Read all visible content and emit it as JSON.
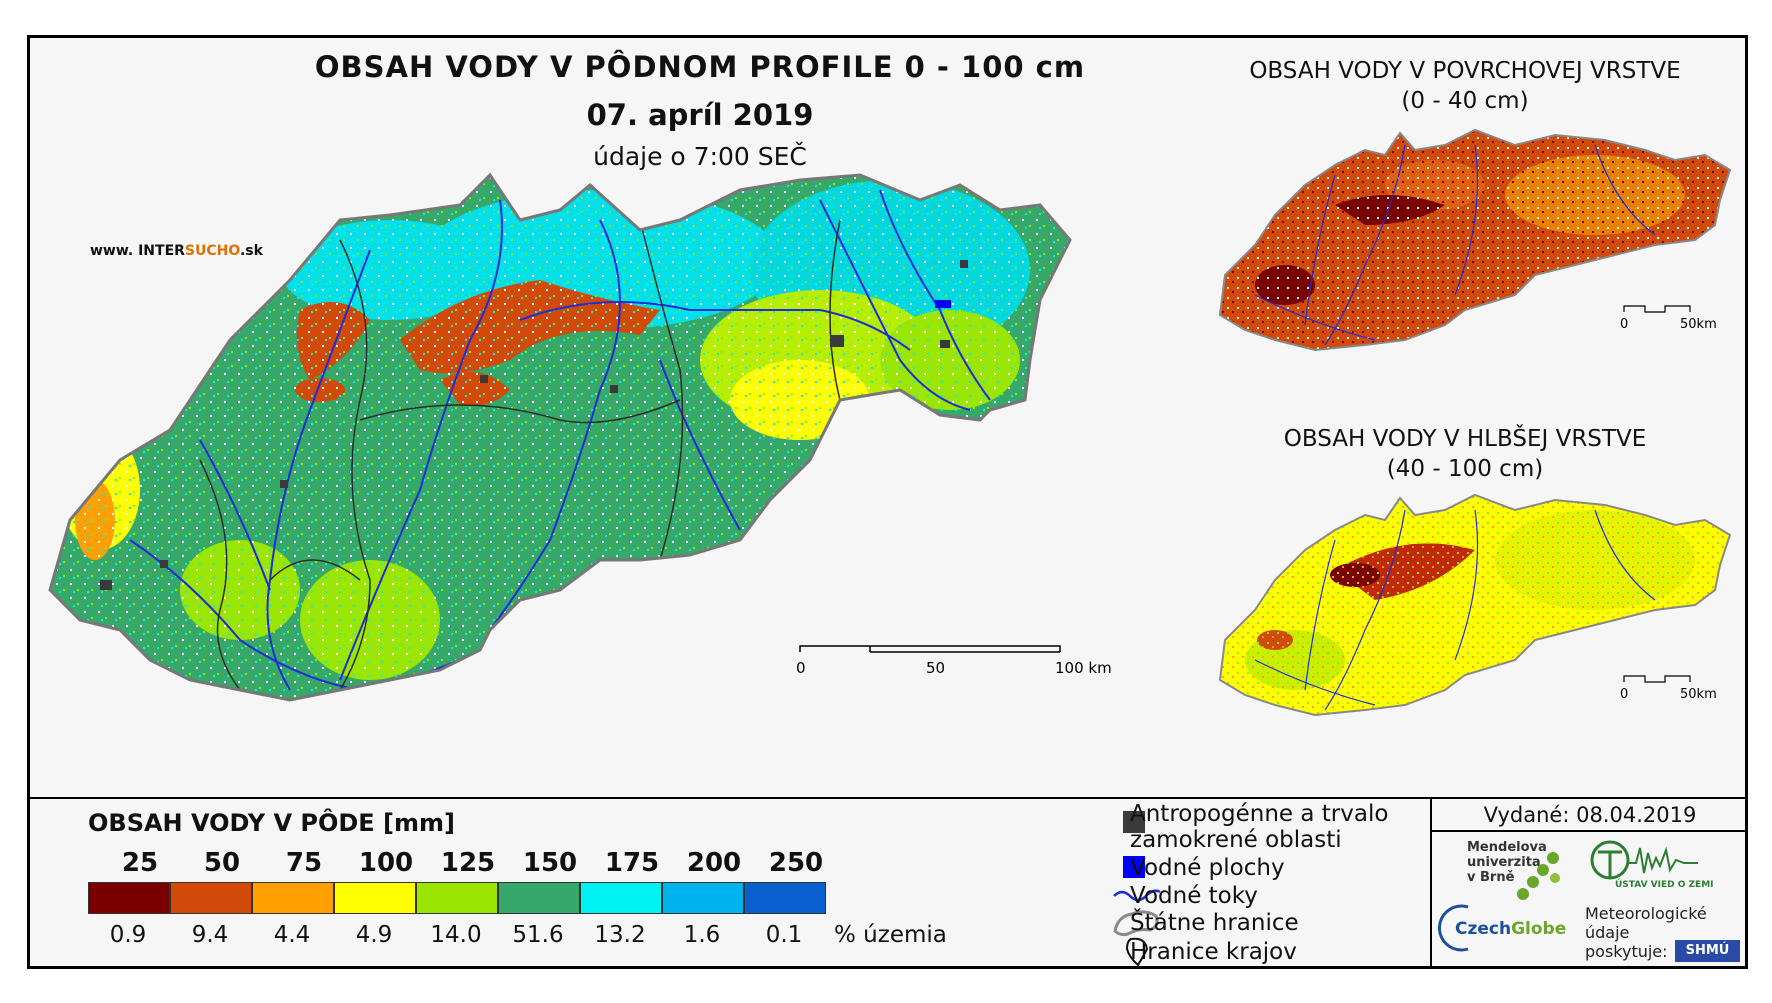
{
  "main_title": "OBSAH VODY V PÔDNOM PROFILE 0 - 100 cm",
  "date": "07. apríl 2019",
  "time_note": "údaje o 7:00 SEČ",
  "website": {
    "prefix": "www. INTER",
    "accent": "SUCHO",
    "suffix": ".sk"
  },
  "surface": {
    "title_line1": "OBSAH VODY V POVRCHOVEJ VRSTVE",
    "title_line2": "(0 - 40 cm)"
  },
  "deep": {
    "title_line1": "OBSAH VODY V HLBŠEJ VRSTVE",
    "title_line2": "(40 - 100 cm)"
  },
  "scale_main": {
    "t0": "0",
    "t50": "50",
    "t100": "100 km"
  },
  "scale_small": {
    "t0": "0",
    "t50": "50km"
  },
  "legend": {
    "title": "OBSAH VODY V PÔDE [mm]",
    "thresholds": [
      "25",
      "50",
      "75",
      "100",
      "125",
      "150",
      "175",
      "200",
      "250"
    ],
    "classes": [
      {
        "color": "#7a0000",
        "percent": "0.9"
      },
      {
        "color": "#d24a0a",
        "percent": "9.4"
      },
      {
        "color": "#ffa000",
        "percent": "4.4"
      },
      {
        "color": "#ffff00",
        "percent": "4.9"
      },
      {
        "color": "#9be600",
        "percent": "14.0"
      },
      {
        "color": "#35a86a",
        "percent": "51.6"
      },
      {
        "color": "#00f2f2",
        "percent": "13.2"
      },
      {
        "color": "#00b2ee",
        "percent": "1.6"
      },
      {
        "color": "#0a5fd0",
        "percent": "0.1"
      }
    ],
    "unit": "% územia"
  },
  "map_key": {
    "anthropogenic_line1": "Antropogénne a trvalo",
    "anthropogenic_line2": "zamokrené oblasti",
    "water_bodies": "Vodné plochy",
    "rivers": "Vodné toky",
    "state_border": "Štátne hranice",
    "region_border": "Hranice krajov"
  },
  "issued": "Vydané: 08.04.2019",
  "logos": {
    "mendel_line1": "Mendelova",
    "mendel_line2": "univerzita",
    "mendel_line3": "v Brně",
    "czechglobe_a": "Czech",
    "czechglobe_b": "Globe",
    "uvz": "ÚSTAV VIED O ZEMI",
    "met_line1": "Meteorologické",
    "met_line2": "údaje",
    "met_line3": "poskytuje:",
    "shmu": "SHMÚ"
  }
}
